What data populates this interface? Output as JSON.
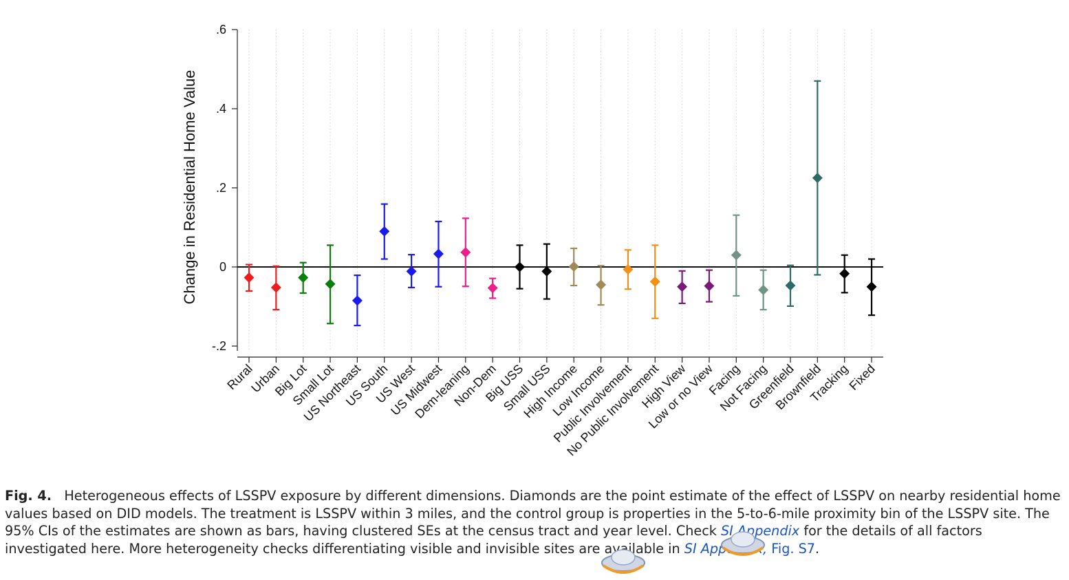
{
  "chart_data": {
    "type": "scatter",
    "ylabel": "Change in Residential Home Value",
    "ylim": [
      -0.2,
      0.6
    ],
    "yticks": [
      -0.2,
      0,
      0.2,
      0.4,
      0.6
    ],
    "ytick_labels": [
      "-.2",
      "0",
      ".2",
      ".4",
      ".6"
    ],
    "grid": "vertical dotted",
    "reference_line": 0,
    "points": [
      {
        "category": "Rural",
        "estimate": -0.027,
        "ci_low": -0.061,
        "ci_high": 0.006,
        "color": "#ee1c1c"
      },
      {
        "category": "Urban",
        "estimate": -0.052,
        "ci_low": -0.108,
        "ci_high": 0.002,
        "color": "#ee1c1c"
      },
      {
        "category": "Big Lot",
        "estimate": -0.027,
        "ci_low": -0.066,
        "ci_high": 0.011,
        "color": "#0a7d0a"
      },
      {
        "category": "Small Lot",
        "estimate": -0.043,
        "ci_low": -0.143,
        "ci_high": 0.055,
        "color": "#0a7d0a"
      },
      {
        "category": "US Northeast",
        "estimate": -0.085,
        "ci_low": -0.148,
        "ci_high": -0.021,
        "color": "#1a1aee"
      },
      {
        "category": "US South",
        "estimate": 0.09,
        "ci_low": 0.02,
        "ci_high": 0.159,
        "color": "#1a1aee"
      },
      {
        "category": "US West",
        "estimate": -0.011,
        "ci_low": -0.052,
        "ci_high": 0.031,
        "color": "#1a1aee"
      },
      {
        "category": "US Midwest",
        "estimate": 0.033,
        "ci_low": -0.05,
        "ci_high": 0.115,
        "color": "#1a1aee"
      },
      {
        "category": "Dem-leaning",
        "estimate": 0.037,
        "ci_low": -0.049,
        "ci_high": 0.123,
        "color": "#ee1c8c"
      },
      {
        "category": "Non-Dem",
        "estimate": -0.053,
        "ci_low": -0.079,
        "ci_high": -0.029,
        "color": "#ee1c8c"
      },
      {
        "category": "Big USS",
        "estimate": 0.0,
        "ci_low": -0.055,
        "ci_high": 0.055,
        "color": "#000000"
      },
      {
        "category": "Small USS",
        "estimate": -0.011,
        "ci_low": -0.081,
        "ci_high": 0.058,
        "color": "#000000"
      },
      {
        "category": "High Income",
        "estimate": 0.001,
        "ci_low": -0.047,
        "ci_high": 0.047,
        "color": "#a08a56"
      },
      {
        "category": "Low Income",
        "estimate": -0.045,
        "ci_low": -0.096,
        "ci_high": 0.003,
        "color": "#a08a56"
      },
      {
        "category": "Public Involvement",
        "estimate": -0.006,
        "ci_low": -0.056,
        "ci_high": 0.043,
        "color": "#f39018"
      },
      {
        "category": "No Public Involvement",
        "estimate": -0.037,
        "ci_low": -0.13,
        "ci_high": 0.055,
        "color": "#f39018"
      },
      {
        "category": "High View",
        "estimate": -0.05,
        "ci_low": -0.092,
        "ci_high": -0.01,
        "color": "#7a1a78"
      },
      {
        "category": "Low or no View",
        "estimate": -0.048,
        "ci_low": -0.088,
        "ci_high": -0.008,
        "color": "#7a1a78"
      },
      {
        "category": "Facing",
        "estimate": 0.03,
        "ci_low": -0.073,
        "ci_high": 0.131,
        "color": "#6f9486"
      },
      {
        "category": "Not Facing",
        "estimate": -0.058,
        "ci_low": -0.108,
        "ci_high": -0.008,
        "color": "#6f9486"
      },
      {
        "category": "Greenfield",
        "estimate": -0.047,
        "ci_low": -0.099,
        "ci_high": 0.004,
        "color": "#2e6b66"
      },
      {
        "category": "Brownfield",
        "estimate": 0.225,
        "ci_low": -0.02,
        "ci_high": 0.47,
        "color": "#2e6b66"
      },
      {
        "category": "Tracking",
        "estimate": -0.017,
        "ci_low": -0.065,
        "ci_high": 0.03,
        "color": "#000000"
      },
      {
        "category": "Fixed",
        "estimate": -0.05,
        "ci_low": -0.122,
        "ci_high": 0.02,
        "color": "#000000"
      }
    ]
  },
  "caption": {
    "fig_label": "Fig. 4.",
    "text_1": "Heterogeneous effects of LSSPV exposure by different dimensions. Diamonds are the point estimate of the effect of LSSPV on nearby residential home values based on DID models. The treatment is LSSPV within 3 miles, and the control group is properties in the 5-to-6-mile proximity bin of the LSSPV site. The 95% CIs of the estimates are shown as bars, having clustered SEs at the census tract and year level. Check ",
    "link_1": "SI Appendix",
    "text_2": " for the details of all factors investigated here. More heterogeneity checks differentiating visible and invisible sites are available in ",
    "link_2": "SI Appendix,",
    "link_3": " Fig. S7",
    "text_3": "."
  }
}
